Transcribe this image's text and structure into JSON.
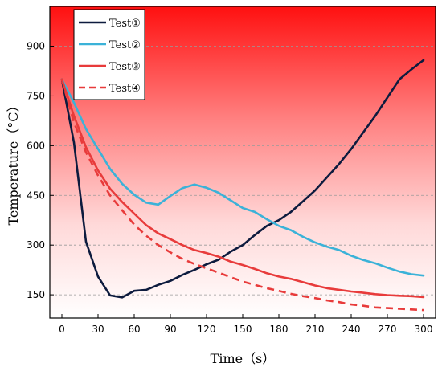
{
  "chart_data": {
    "type": "line",
    "xlabel": "Time（s）",
    "ylabel": "Temperature（°C）",
    "xlim": [
      -10,
      310
    ],
    "ylim": [
      80,
      1020
    ],
    "xticks": [
      0,
      30,
      60,
      90,
      120,
      150,
      180,
      210,
      240,
      270,
      300
    ],
    "yticks": [
      150,
      300,
      450,
      600,
      750,
      900
    ],
    "grid": true,
    "legend": "top-left",
    "background": "red-to-white vertical gradient",
    "series": [
      {
        "name": "Test①",
        "color": "#0d1b3e",
        "style": "solid",
        "x": [
          0,
          10,
          20,
          30,
          40,
          50,
          60,
          70,
          80,
          90,
          100,
          110,
          120,
          130,
          140,
          150,
          160,
          170,
          180,
          190,
          200,
          210,
          220,
          230,
          240,
          250,
          260,
          270,
          280,
          290,
          300
        ],
        "y": [
          800,
          610,
          310,
          205,
          148,
          142,
          162,
          165,
          180,
          192,
          210,
          225,
          242,
          256,
          280,
          300,
          330,
          358,
          375,
          400,
          432,
          465,
          505,
          545,
          590,
          640,
          690,
          745,
          800,
          830,
          858
        ]
      },
      {
        "name": "Test②",
        "color": "#3bb2d8",
        "style": "solid",
        "x": [
          0,
          10,
          20,
          30,
          40,
          50,
          60,
          70,
          80,
          90,
          100,
          110,
          120,
          130,
          140,
          150,
          160,
          170,
          180,
          190,
          200,
          210,
          220,
          230,
          240,
          250,
          260,
          270,
          280,
          290,
          300
        ],
        "y": [
          800,
          730,
          650,
          590,
          530,
          485,
          452,
          428,
          422,
          448,
          472,
          483,
          473,
          458,
          435,
          412,
          400,
          378,
          358,
          345,
          325,
          308,
          295,
          285,
          268,
          255,
          245,
          232,
          220,
          212,
          208
        ]
      },
      {
        "name": "Test③",
        "color": "#e83b3b",
        "style": "solid",
        "x": [
          0,
          10,
          20,
          30,
          40,
          50,
          60,
          70,
          80,
          90,
          100,
          110,
          120,
          130,
          140,
          150,
          160,
          170,
          180,
          190,
          200,
          210,
          220,
          230,
          240,
          250,
          260,
          270,
          280,
          290,
          300
        ],
        "y": [
          800,
          690,
          595,
          525,
          470,
          430,
          395,
          360,
          335,
          318,
          300,
          285,
          276,
          265,
          250,
          240,
          228,
          215,
          205,
          198,
          188,
          178,
          170,
          165,
          160,
          156,
          152,
          149,
          147,
          146,
          143
        ]
      },
      {
        "name": "Test④",
        "color": "#e83b3b",
        "style": "dashed",
        "x": [
          0,
          10,
          20,
          30,
          40,
          50,
          60,
          70,
          80,
          90,
          100,
          110,
          120,
          130,
          140,
          150,
          160,
          170,
          180,
          190,
          200,
          210,
          220,
          230,
          240,
          250,
          260,
          270,
          280,
          290,
          300
        ],
        "y": [
          800,
          670,
          580,
          510,
          450,
          405,
          362,
          328,
          300,
          278,
          258,
          243,
          230,
          217,
          203,
          190,
          180,
          170,
          162,
          153,
          146,
          140,
          133,
          128,
          121,
          117,
          112,
          110,
          108,
          106,
          104
        ]
      }
    ]
  }
}
